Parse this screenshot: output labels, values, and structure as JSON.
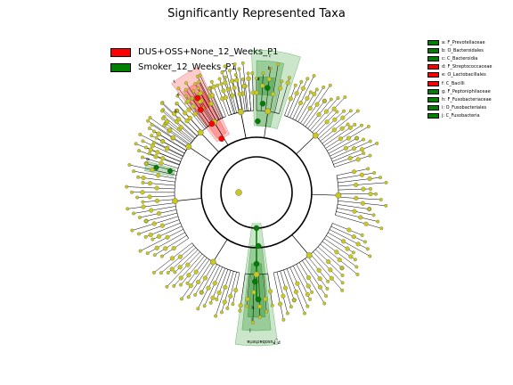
{
  "title": "Significantly Represented Taxa",
  "groups": [
    {
      "label": "DUS+OSS+None_12_Weeks_P1",
      "color": "#ff0000"
    },
    {
      "label": "Smoker_12_Weeks_P1",
      "color": "#008000"
    }
  ],
  "taxa_key": [
    {
      "text": "a: F_Prevotellaceae",
      "color": "#008000"
    },
    {
      "text": "b: O_Bacteroidales",
      "color": "#008000"
    },
    {
      "text": "c: C_Bacteroidia",
      "color": "#008000"
    },
    {
      "text": "d: F_Streptococcaceae",
      "color": "#ff0000"
    },
    {
      "text": "e: O_Lactobacillales",
      "color": "#ff0000"
    },
    {
      "text": "f: C_Bacilli",
      "color": "#ff0000"
    },
    {
      "text": "g: F_Peptoniphilaceae",
      "color": "#008000"
    },
    {
      "text": "h: F_Fusobacteriaceae",
      "color": "#008000"
    },
    {
      "text": "i: O_Fusobacteriales",
      "color": "#008000"
    },
    {
      "text": "j: C_Fusobacteria",
      "color": "#008000"
    }
  ],
  "sector_labels": [
    "c",
    "b",
    "a",
    "f",
    "e",
    "d",
    "g",
    "j",
    "i",
    "h",
    "P_Fusobacteria"
  ],
  "colors": {
    "node": "#c8c81e",
    "red": "#ff0000",
    "green": "#008000",
    "line": "#000000"
  }
}
